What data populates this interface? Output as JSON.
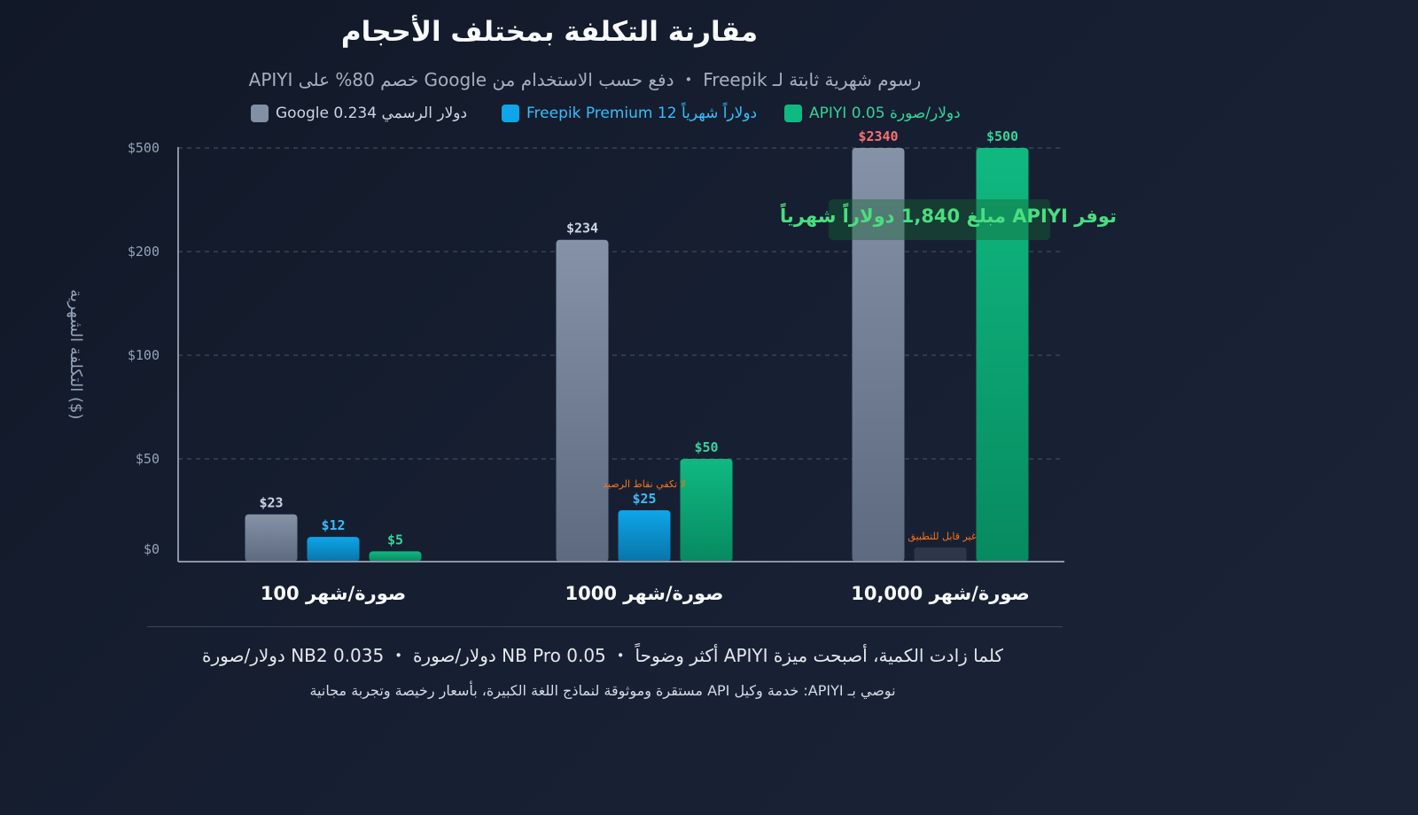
{
  "title": "مقارنة التكلفة بمختلف الأحجام",
  "subtitle": "APIYI خصم 80% على Google دفع حسب الاستخدام من ・ Freepik رسوم شهرية ثابتة لـ",
  "legend": [
    {
      "label": "Google 0.234 دولار الرسمي",
      "color": "#8290a5"
    },
    {
      "label": "Freepik Premium 12 دولاراً شهرياً",
      "color": "#0ea5e9"
    },
    {
      "label": "APIYI 0.05 دولار/صورة",
      "color": "#10b981"
    }
  ],
  "chart_data": {
    "type": "bar",
    "title": "مقارنة التكلفة بمختلف الأحجام",
    "xlabel": "",
    "ylabel": "التكلفة الشهرية ($)",
    "y_ticks": [
      "$0",
      "$50",
      "$100",
      "$200",
      "$500"
    ],
    "y_tick_values": [
      0,
      50,
      100,
      200,
      500
    ],
    "categories": [
      "100 صورة/شهر",
      "1000 صورة/شهر",
      "10,000 صورة/شهر"
    ],
    "series": [
      {
        "name": "Google 0.234 دولار الرسمي",
        "values": [
          23,
          234,
          2340
        ],
        "labels": [
          "$23",
          "$234",
          "$2340"
        ],
        "color": "#8290a5",
        "label_color": "#cbd5e1"
      },
      {
        "name": "Freepik Premium 12 دولاراً شهرياً",
        "values": [
          12,
          25,
          null
        ],
        "labels": [
          "$12",
          "$25",
          ""
        ],
        "color": "#0ea5e9",
        "label_color": "#38bdf8"
      },
      {
        "name": "APIYI 0.05 دولار/صورة",
        "values": [
          5,
          50,
          500
        ],
        "labels": [
          "$5",
          "$50",
          "$500"
        ],
        "color": "#10b981",
        "label_color": "#34d399"
      }
    ],
    "annotations": [
      {
        "text": "لا تكفي نقاط الرصيد",
        "category": 1,
        "series": 1
      },
      {
        "text": "غير قابل للتطبيق",
        "category": 2,
        "series": 1
      }
    ],
    "savings_note": "مبلغ 1,840 دولاراً شهرياً APIYI توفر",
    "grid": true,
    "legend_position": "top"
  },
  "footer": {
    "main": "دولار/صورة NB2 0.035 ・ دولار/صورة NB Pro 0.05 ・ أكثر وضوحاً APIYI كلما زادت الكمية، أصبحت ميزة",
    "small": "مستقرة وموثوقة لنماذج اللغة الكبيرة، بأسعار رخيصة وتجربة مجانية API خدمة وكيل :APIYI نوصي بـ"
  }
}
